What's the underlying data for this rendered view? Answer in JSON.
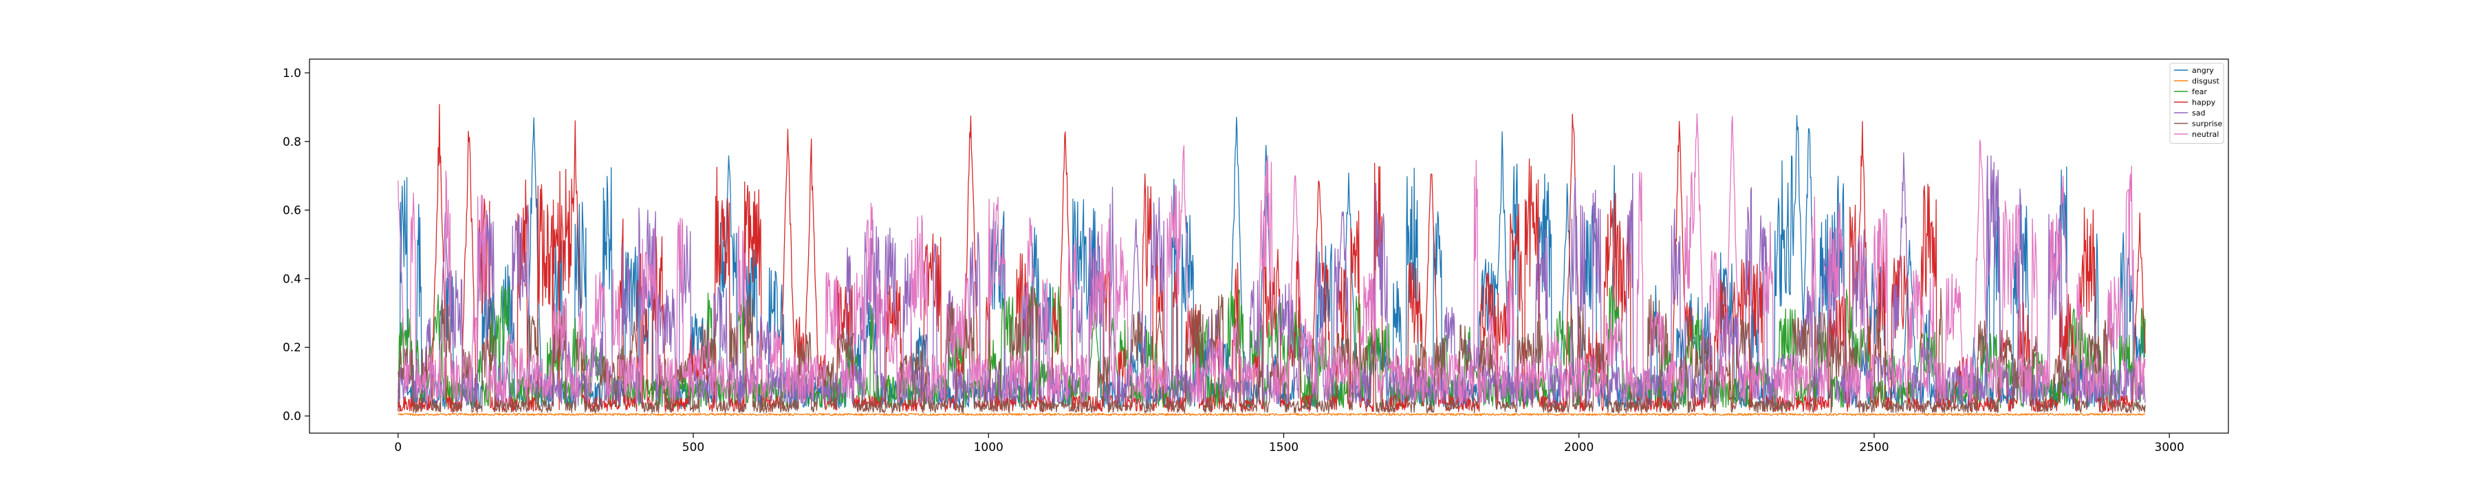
{
  "chart_data": {
    "type": "line",
    "title": "",
    "xlabel": "",
    "ylabel": "",
    "xlim": [
      -150,
      3100
    ],
    "ylim": [
      -0.05,
      1.04
    ],
    "n_points": 2960,
    "x_ticks": [
      0,
      500,
      1000,
      1500,
      2000,
      2500,
      3000
    ],
    "y_ticks": [
      0.0,
      0.2,
      0.4,
      0.6,
      0.8,
      1.0
    ],
    "x_tick_labels": [
      "0",
      "500",
      "1000",
      "1500",
      "2000",
      "2500",
      "3000"
    ],
    "y_tick_labels": [
      "0.0",
      "0.2",
      "0.4",
      "0.6",
      "0.8",
      "1.0"
    ],
    "grid": false,
    "legend_position": "top-right",
    "series": [
      {
        "name": "angry",
        "color": "#1f77b4",
        "baseline": 0.07,
        "spikes": [
          {
            "x": 230,
            "y": 0.93
          },
          {
            "x": 560,
            "y": 0.84
          },
          {
            "x": 1420,
            "y": 0.93
          },
          {
            "x": 1470,
            "y": 0.84
          },
          {
            "x": 1610,
            "y": 0.77
          },
          {
            "x": 1870,
            "y": 0.84
          },
          {
            "x": 1980,
            "y": 0.7
          },
          {
            "x": 2370,
            "y": 0.95
          },
          {
            "x": 2390,
            "y": 0.92
          },
          {
            "x": 2560,
            "y": 0.55
          },
          {
            "x": 2900,
            "y": 0.35
          }
        ]
      },
      {
        "name": "disgust",
        "color": "#ff7f0e",
        "baseline": 0.005,
        "spikes": []
      },
      {
        "name": "fear",
        "color": "#2ca02c",
        "baseline": 0.08,
        "spikes": [
          {
            "x": 1180,
            "y": 0.34
          },
          {
            "x": 1210,
            "y": 0.3
          },
          {
            "x": 2580,
            "y": 0.25
          },
          {
            "x": 60,
            "y": 0.25
          },
          {
            "x": 2040,
            "y": 0.18
          }
        ]
      },
      {
        "name": "happy",
        "color": "#d62728",
        "baseline": 0.04,
        "spikes": [
          {
            "x": 70,
            "y": 0.92
          },
          {
            "x": 120,
            "y": 0.9
          },
          {
            "x": 300,
            "y": 0.88
          },
          {
            "x": 660,
            "y": 0.88
          },
          {
            "x": 700,
            "y": 0.82
          },
          {
            "x": 970,
            "y": 0.98
          },
          {
            "x": 1130,
            "y": 0.94
          },
          {
            "x": 1560,
            "y": 0.78
          },
          {
            "x": 1750,
            "y": 0.8
          },
          {
            "x": 1990,
            "y": 0.96
          },
          {
            "x": 2170,
            "y": 0.92
          },
          {
            "x": 2480,
            "y": 0.9
          },
          {
            "x": 2950,
            "y": 0.6
          }
        ]
      },
      {
        "name": "sad",
        "color": "#9467bd",
        "baseline": 0.1,
        "spikes": [
          {
            "x": 80,
            "y": 0.6
          },
          {
            "x": 1250,
            "y": 0.62
          },
          {
            "x": 1600,
            "y": 0.67
          },
          {
            "x": 2550,
            "y": 0.82
          },
          {
            "x": 2700,
            "y": 0.65
          }
        ]
      },
      {
        "name": "surprise",
        "color": "#8c564b",
        "baseline": 0.03,
        "spikes": [
          {
            "x": 400,
            "y": 0.3
          },
          {
            "x": 1290,
            "y": 0.33
          },
          {
            "x": 1700,
            "y": 0.15
          }
        ]
      },
      {
        "name": "neutral",
        "color": "#e377c2",
        "baseline": 0.12,
        "spikes": [
          {
            "x": 0,
            "y": 0.75
          },
          {
            "x": 1330,
            "y": 0.85
          },
          {
            "x": 1520,
            "y": 0.8
          },
          {
            "x": 2200,
            "y": 0.95
          },
          {
            "x": 2260,
            "y": 0.92
          },
          {
            "x": 2680,
            "y": 0.92
          },
          {
            "x": 2820,
            "y": 0.78
          }
        ]
      }
    ]
  }
}
